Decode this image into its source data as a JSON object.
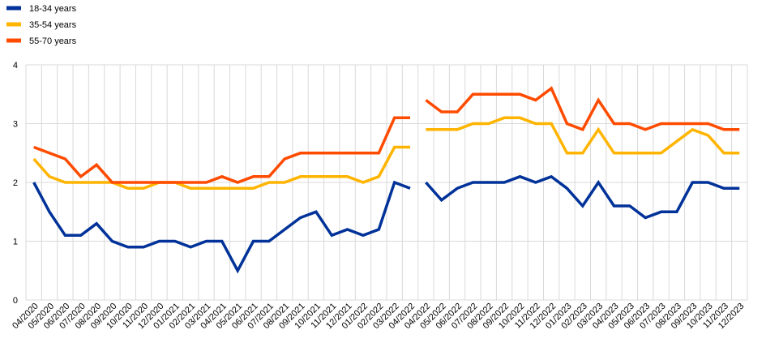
{
  "chart_data": {
    "type": "line",
    "title": "",
    "xlabel": "",
    "ylabel": "",
    "ylim": [
      0,
      4
    ],
    "yticks": [
      0,
      1,
      2,
      3,
      4
    ],
    "grid": {
      "horizontal": true,
      "vertical": true
    },
    "legend_position": "top-left",
    "categories": [
      "04/2020",
      "05/2020",
      "06/2020",
      "07/2020",
      "08/2020",
      "09/2020",
      "10/2020",
      "11/2020",
      "12/2020",
      "01/2021",
      "02/2021",
      "03/2021",
      "04/2021",
      "05/2021",
      "06/2021",
      "07/2021",
      "08/2021",
      "09/2021",
      "10/2021",
      "11/2021",
      "12/2021",
      "01/2022",
      "02/2022",
      "03/2022",
      "04/2022",
      "04/2022",
      "05/2022",
      "06/2022",
      "07/2022",
      "08/2022",
      "09/2022",
      "10/2022",
      "11/2022",
      "12/2022",
      "01/2023",
      "02/2023",
      "03/2023",
      "04/2023",
      "05/2023",
      "06/2023",
      "07/2023",
      "08/2023",
      "09/2023",
      "10/2023",
      "11/2023",
      "12/2023"
    ],
    "series": [
      {
        "name": "18-34 years",
        "color": "#003299",
        "values": [
          2.0,
          1.5,
          1.1,
          1.1,
          1.3,
          1.0,
          0.9,
          0.9,
          1.0,
          1.0,
          0.9,
          1.0,
          1.0,
          0.5,
          1.0,
          1.0,
          1.2,
          1.4,
          1.5,
          1.1,
          1.2,
          1.1,
          1.2,
          2.0,
          1.9,
          2.0,
          1.7,
          1.9,
          2.0,
          2.0,
          2.0,
          2.1,
          2.0,
          2.1,
          1.9,
          1.6,
          2.0,
          1.6,
          1.6,
          1.4,
          1.5,
          1.5,
          2.0,
          2.0,
          1.9,
          1.9
        ]
      },
      {
        "name": "35-54 years",
        "color": "#FFB400",
        "values": [
          2.4,
          2.1,
          2.0,
          2.0,
          2.0,
          2.0,
          1.9,
          1.9,
          2.0,
          2.0,
          1.9,
          1.9,
          1.9,
          1.9,
          1.9,
          2.0,
          2.0,
          2.1,
          2.1,
          2.1,
          2.1,
          2.0,
          2.1,
          2.6,
          2.6,
          2.9,
          2.9,
          2.9,
          3.0,
          3.0,
          3.1,
          3.1,
          3.0,
          3.0,
          2.5,
          2.5,
          2.9,
          2.5,
          2.5,
          2.5,
          2.5,
          2.7,
          2.9,
          2.8,
          2.5,
          2.5
        ]
      },
      {
        "name": "55-70 years",
        "color": "#FF4B00",
        "values": [
          2.6,
          2.5,
          2.4,
          2.1,
          2.3,
          2.0,
          2.0,
          2.0,
          2.0,
          2.0,
          2.0,
          2.0,
          2.1,
          2.0,
          2.1,
          2.1,
          2.4,
          2.5,
          2.5,
          2.5,
          2.5,
          2.5,
          2.5,
          3.1,
          3.1,
          3.4,
          3.2,
          3.2,
          3.5,
          3.5,
          3.5,
          3.5,
          3.4,
          3.6,
          3.0,
          2.9,
          3.4,
          3.0,
          3.0,
          2.9,
          3.0,
          3.0,
          3.0,
          3.0,
          2.9,
          2.9
        ]
      }
    ],
    "break_after_index": 24
  }
}
